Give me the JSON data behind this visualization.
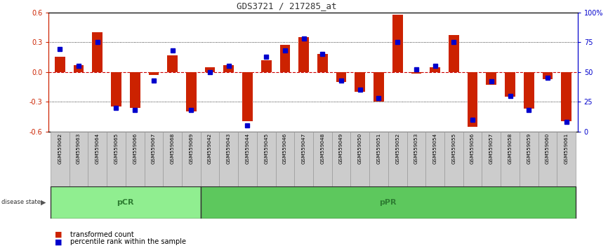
{
  "title": "GDS3721 / 217285_at",
  "samples": [
    "GSM559062",
    "GSM559063",
    "GSM559064",
    "GSM559065",
    "GSM559066",
    "GSM559067",
    "GSM559068",
    "GSM559069",
    "GSM559042",
    "GSM559043",
    "GSM559044",
    "GSM559045",
    "GSM559046",
    "GSM559047",
    "GSM559048",
    "GSM559049",
    "GSM559050",
    "GSM559051",
    "GSM559052",
    "GSM559053",
    "GSM559054",
    "GSM559055",
    "GSM559056",
    "GSM559057",
    "GSM559058",
    "GSM559059",
    "GSM559060",
    "GSM559061"
  ],
  "red_bars": [
    0.15,
    0.07,
    0.4,
    -0.35,
    -0.36,
    -0.03,
    0.17,
    -0.4,
    0.05,
    0.07,
    -0.5,
    0.12,
    0.27,
    0.35,
    0.18,
    -0.1,
    -0.2,
    -0.3,
    0.58,
    -0.02,
    0.05,
    0.37,
    -0.55,
    -0.13,
    -0.25,
    -0.37,
    -0.07,
    -0.5
  ],
  "blue_dots": [
    69,
    55,
    75,
    20,
    18,
    43,
    68,
    18,
    50,
    55,
    5,
    63,
    68,
    78,
    65,
    43,
    35,
    28,
    75,
    52,
    55,
    75,
    10,
    42,
    30,
    18,
    45,
    8
  ],
  "groups": [
    {
      "label": "pCR",
      "start": 0,
      "end": 8,
      "color": "#90EE90"
    },
    {
      "label": "pPR",
      "start": 8,
      "end": 28,
      "color": "#5DC85D"
    }
  ],
  "ylim": [
    -0.6,
    0.6
  ],
  "right_ylim": [
    0,
    100
  ],
  "bar_color": "#CC2200",
  "dot_color": "#0000CC",
  "zero_line_color": "#CC0000",
  "bg_color": "#FFFFFF",
  "plot_bg": "#FFFFFF",
  "label_bg": "#CCCCCC",
  "yticks_left": [
    -0.6,
    -0.3,
    0.0,
    0.3,
    0.6
  ],
  "yticks_right": [
    0,
    25,
    50,
    75,
    100
  ],
  "bar_width": 0.55
}
